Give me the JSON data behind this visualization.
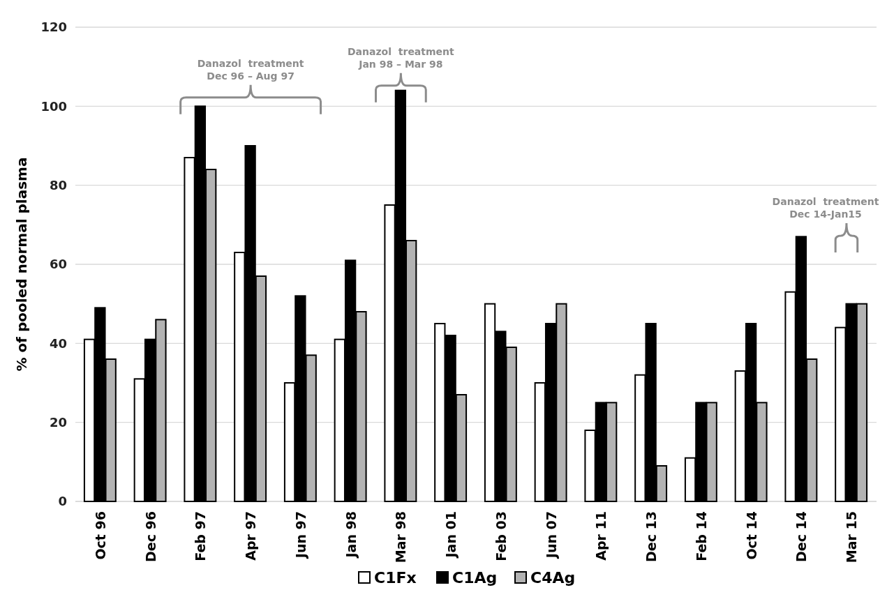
{
  "chart_data": {
    "type": "bar",
    "ylabel": "% of pooled normal plasma",
    "categories": [
      "Oct 96",
      "Dec 96",
      "Feb 97",
      "Apr 97",
      "Jun 97",
      "Jan 98",
      "Mar 98",
      "Jan 01",
      "Feb 03",
      "Jun 07",
      "Apr 11",
      "Dec 13",
      "Feb 14",
      "Oct 14",
      "Dec 14",
      "Mar 15"
    ],
    "series": [
      {
        "name": "C1Fx",
        "color": "#ffffff",
        "values": [
          41,
          31,
          87,
          63,
          30,
          41,
          75,
          45,
          50,
          30,
          18,
          32,
          11,
          33,
          53,
          44
        ]
      },
      {
        "name": "C1Ag",
        "color": "#000000",
        "values": [
          49,
          41,
          100,
          90,
          52,
          61,
          104,
          42,
          43,
          45,
          25,
          45,
          25,
          45,
          67,
          50
        ]
      },
      {
        "name": "C4Ag",
        "color": "#b3b3b3",
        "values": [
          36,
          46,
          84,
          57,
          37,
          48,
          66,
          27,
          39,
          50,
          25,
          9,
          25,
          25,
          36,
          50
        ]
      }
    ],
    "ylim": [
      0,
      120
    ],
    "yticks": [
      0,
      20,
      40,
      60,
      80,
      100,
      120
    ],
    "grid": "y",
    "legend": "bottom",
    "annotations": [
      "Danazol  treatment\nDec 96 – Aug 97",
      "Danazol  treatment\nJan 98 – Mar 98",
      "Danazol  treatment\nDec 14-Jan15"
    ]
  }
}
